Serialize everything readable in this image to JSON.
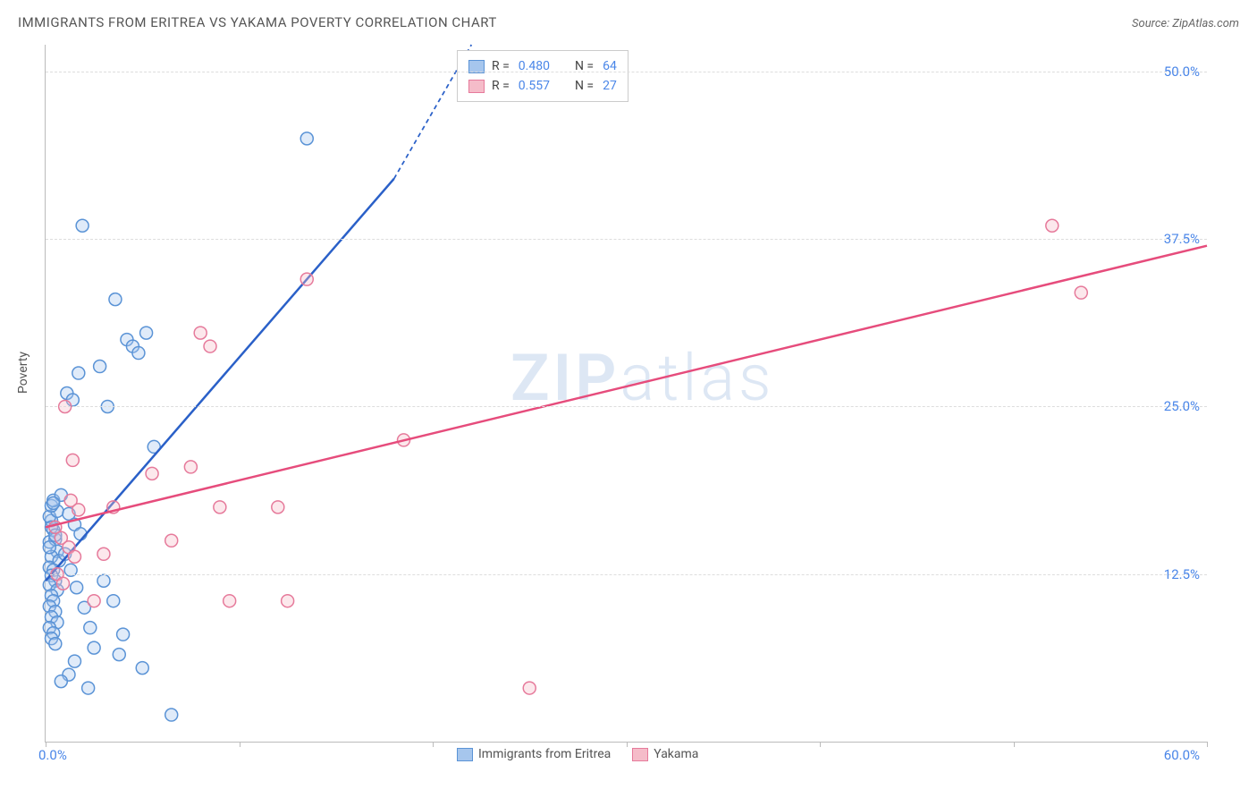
{
  "title": "IMMIGRANTS FROM ERITREA VS YAKAMA POVERTY CORRELATION CHART",
  "source": "Source: ZipAtlas.com",
  "y_axis_title": "Poverty",
  "watermark": {
    "bold": "ZIP",
    "light": "atlas"
  },
  "chart": {
    "type": "scatter",
    "background_color": "#ffffff",
    "grid_color": "#dddddd",
    "axis_color": "#bbbbbb",
    "xlim": [
      0,
      60
    ],
    "ylim": [
      0,
      52
    ],
    "xtick_positions": [
      0,
      10,
      20,
      30,
      40,
      50,
      60
    ],
    "xtick_labels": [
      "0.0%",
      "",
      "",
      "",
      "",
      "",
      "60.0%"
    ],
    "ytick_positions": [
      12.5,
      25.0,
      37.5,
      50.0
    ],
    "ytick_labels": [
      "12.5%",
      "25.0%",
      "37.5%",
      "50.0%"
    ],
    "marker_radius": 7,
    "marker_fill_opacity": 0.35,
    "marker_stroke_width": 1.5,
    "line_width": 2.5,
    "dash_pattern": "5,4",
    "series": [
      {
        "key": "eritrea",
        "label": "Immigrants from Eritrea",
        "color_fill": "#a6c6ed",
        "color_stroke": "#5a93d6",
        "line_color": "#2a60c8",
        "r_label": "R =",
        "r_value": "0.480",
        "n_label": "N =",
        "n_value": "64",
        "trend": {
          "x1": 0,
          "y1": 12.0,
          "x2": 18,
          "y2": 42.0,
          "dash_x2": 22,
          "dash_y2": 52.0
        },
        "points": [
          [
            0.3,
            16.5
          ],
          [
            0.4,
            15.8
          ],
          [
            0.2,
            14.9
          ],
          [
            0.5,
            15.1
          ],
          [
            0.6,
            14.2
          ],
          [
            0.3,
            13.8
          ],
          [
            0.7,
            13.5
          ],
          [
            0.2,
            13.0
          ],
          [
            0.4,
            12.8
          ],
          [
            0.3,
            12.4
          ],
          [
            0.5,
            12.0
          ],
          [
            0.2,
            11.7
          ],
          [
            0.6,
            11.3
          ],
          [
            0.3,
            10.9
          ],
          [
            0.4,
            10.5
          ],
          [
            0.2,
            10.1
          ],
          [
            0.5,
            9.7
          ],
          [
            0.3,
            9.3
          ],
          [
            0.6,
            8.9
          ],
          [
            0.2,
            8.5
          ],
          [
            0.4,
            8.1
          ],
          [
            0.3,
            7.7
          ],
          [
            0.5,
            7.3
          ],
          [
            0.2,
            16.8
          ],
          [
            0.6,
            17.2
          ],
          [
            0.3,
            17.6
          ],
          [
            0.4,
            18.0
          ],
          [
            0.8,
            18.4
          ],
          [
            1.2,
            17.0
          ],
          [
            1.5,
            16.2
          ],
          [
            1.8,
            15.5
          ],
          [
            1.0,
            14.0
          ],
          [
            1.3,
            12.8
          ],
          [
            1.6,
            11.5
          ],
          [
            2.0,
            10.0
          ],
          [
            2.3,
            8.5
          ],
          [
            1.1,
            26.0
          ],
          [
            1.4,
            25.5
          ],
          [
            1.7,
            27.5
          ],
          [
            2.8,
            28.0
          ],
          [
            3.2,
            25.0
          ],
          [
            3.6,
            33.0
          ],
          [
            1.9,
            38.5
          ],
          [
            4.2,
            30.0
          ],
          [
            4.5,
            29.5
          ],
          [
            3.0,
            12.0
          ],
          [
            3.5,
            10.5
          ],
          [
            4.0,
            8.0
          ],
          [
            4.8,
            29.0
          ],
          [
            5.2,
            30.5
          ],
          [
            5.6,
            22.0
          ],
          [
            2.5,
            7.0
          ],
          [
            3.8,
            6.5
          ],
          [
            5.0,
            5.5
          ],
          [
            6.5,
            2.0
          ],
          [
            1.2,
            5.0
          ],
          [
            0.8,
            4.5
          ],
          [
            1.5,
            6.0
          ],
          [
            2.2,
            4.0
          ],
          [
            13.5,
            45.0
          ],
          [
            0.4,
            17.8
          ],
          [
            0.3,
            16.0
          ],
          [
            0.5,
            15.4
          ],
          [
            0.2,
            14.5
          ]
        ]
      },
      {
        "key": "yakama",
        "label": "Yakama",
        "color_fill": "#f5bcc9",
        "color_stroke": "#e67a9b",
        "line_color": "#e64c7c",
        "r_label": "R =",
        "r_value": "0.557",
        "n_label": "N =",
        "n_value": "27",
        "trend": {
          "x1": 0,
          "y1": 16.0,
          "x2": 60,
          "y2": 37.0
        },
        "points": [
          [
            0.5,
            16.0
          ],
          [
            0.8,
            15.2
          ],
          [
            1.2,
            14.5
          ],
          [
            1.5,
            13.8
          ],
          [
            0.6,
            12.5
          ],
          [
            0.9,
            11.8
          ],
          [
            1.3,
            18.0
          ],
          [
            1.7,
            17.3
          ],
          [
            2.5,
            10.5
          ],
          [
            3.0,
            14.0
          ],
          [
            3.5,
            17.5
          ],
          [
            1.0,
            25.0
          ],
          [
            1.4,
            21.0
          ],
          [
            5.5,
            20.0
          ],
          [
            6.5,
            15.0
          ],
          [
            7.5,
            20.5
          ],
          [
            8.0,
            30.5
          ],
          [
            8.5,
            29.5
          ],
          [
            9.0,
            17.5
          ],
          [
            9.5,
            10.5
          ],
          [
            12.0,
            17.5
          ],
          [
            12.5,
            10.5
          ],
          [
            13.5,
            34.5
          ],
          [
            18.5,
            22.5
          ],
          [
            25.0,
            4.0
          ],
          [
            52.0,
            38.5
          ],
          [
            53.5,
            33.5
          ]
        ]
      }
    ],
    "legend_bottom": [
      {
        "series": "eritrea"
      },
      {
        "series": "yakama"
      }
    ]
  }
}
